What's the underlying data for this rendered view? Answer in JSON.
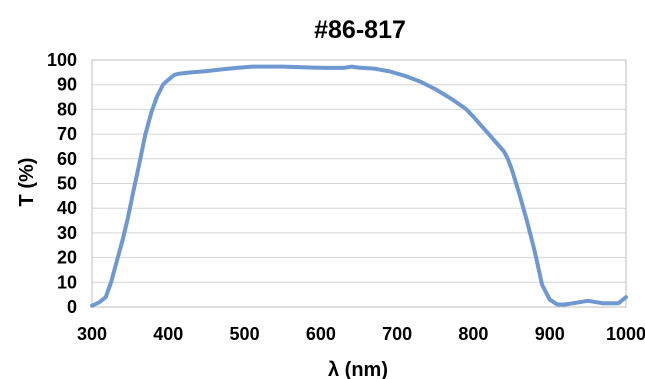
{
  "chart_data": {
    "type": "line",
    "title": "#86-817",
    "xlabel": "λ (nm)",
    "ylabel": "T (%)",
    "xlim": [
      300,
      1000
    ],
    "ylim": [
      0,
      100
    ],
    "xticks": [
      300,
      400,
      500,
      600,
      700,
      800,
      900,
      1000
    ],
    "yticks": [
      0,
      10,
      20,
      30,
      40,
      50,
      60,
      70,
      80,
      90,
      100
    ],
    "grid": true,
    "legend": "none",
    "series_color": "#6f98d0",
    "series": [
      {
        "x": [
          300,
          310,
          318,
          325,
          332,
          340,
          347,
          355,
          362,
          370,
          378,
          385,
          393,
          400,
          408,
          415,
          430,
          450,
          470,
          490,
          510,
          530,
          550,
          570,
          590,
          610,
          630,
          640,
          650,
          670,
          690,
          710,
          730,
          750,
          770,
          790,
          800,
          810,
          820,
          830,
          840,
          845,
          850,
          860,
          870,
          880,
          890,
          900,
          910,
          920,
          930,
          940,
          950,
          960,
          970,
          980,
          990,
          1000
        ],
        "values": [
          0.5,
          2,
          4,
          10,
          18,
          27,
          36,
          48,
          58,
          70,
          79,
          85,
          90,
          92,
          94,
          94.5,
          95,
          95.5,
          96.2,
          96.8,
          97.3,
          97.3,
          97.3,
          97.1,
          96.9,
          96.8,
          96.8,
          97.3,
          96.9,
          96.5,
          95.4,
          93.6,
          91.3,
          88.2,
          84.5,
          80.2,
          77,
          73.5,
          70,
          66.5,
          63,
          60,
          56,
          46,
          35,
          23,
          9,
          3,
          1,
          1,
          1.5,
          2,
          2.5,
          2,
          1.5,
          1.5,
          1.5,
          4
        ]
      }
    ]
  }
}
